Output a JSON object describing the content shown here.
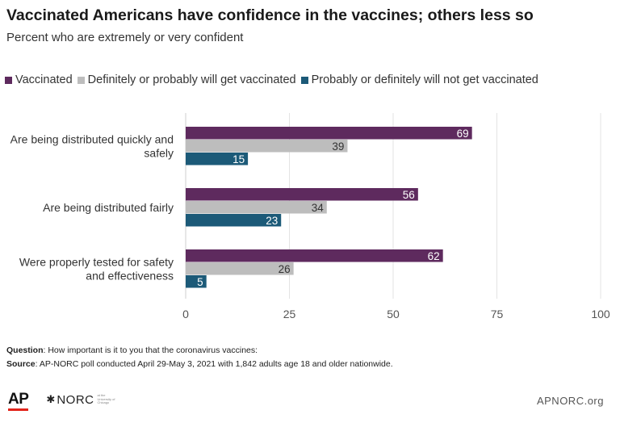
{
  "title": "Vaccinated Americans have confidence in the vaccines; others less so",
  "subtitle": "Percent who are extremely or very confident",
  "question_label": "Question",
  "question_text": ": How important is it to you that the coronavirus vaccines:",
  "source_label": "Source",
  "source_text": ": AP-NORC poll conducted April 29-May 3, 2021 with 1,842 adults age 18 and older nationwide.",
  "logos": {
    "ap": "AP",
    "norc": "NORC",
    "norc_sub": "at the University of Chicago"
  },
  "site": "APNORC.org",
  "chart_data": {
    "type": "bar",
    "orientation": "horizontal",
    "categories": [
      "Are being distributed quickly and safely",
      "Are being distributed fairly",
      "Were properly tested for safety and effectiveness"
    ],
    "category_lines": [
      [
        "Are being distributed quickly and",
        "safely"
      ],
      [
        "Are being distributed fairly"
      ],
      [
        "Were properly tested for safety",
        "and effectiveness"
      ]
    ],
    "series": [
      {
        "name": "Vaccinated",
        "color": "#5e2a5e",
        "values": [
          69,
          56,
          62
        ]
      },
      {
        "name": "Definitely or probably will get vaccinated",
        "color": "#bdbdbd",
        "values": [
          39,
          34,
          26
        ]
      },
      {
        "name": "Probably or definitely will not get vaccinated",
        "color": "#1c5a78",
        "values": [
          15,
          23,
          5
        ]
      }
    ],
    "xlim": [
      0,
      100
    ],
    "xticks": [
      0,
      25,
      50,
      75,
      100
    ],
    "grid": true,
    "legend": "top-left"
  }
}
